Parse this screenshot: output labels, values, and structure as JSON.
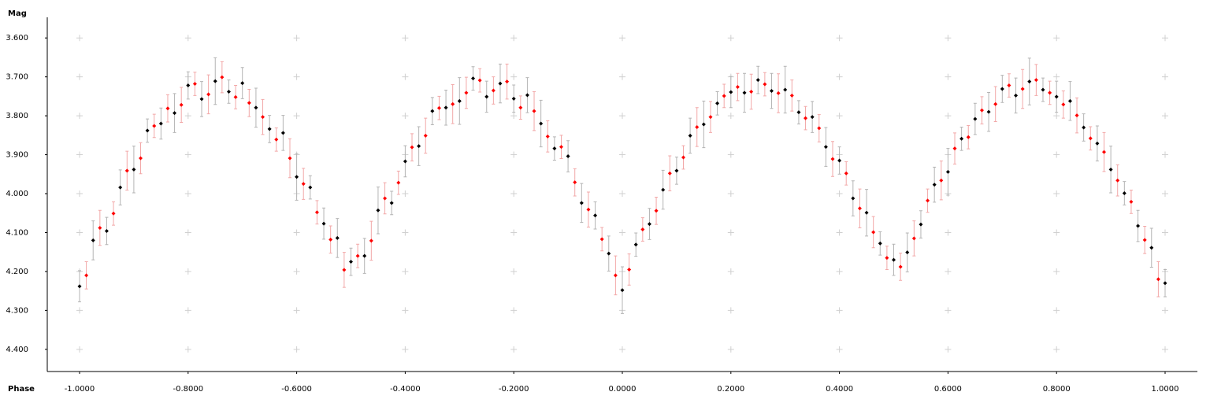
{
  "chart_data": {
    "type": "scatter",
    "x_label": "Phase",
    "y_label": "Mag",
    "xlim": [
      -1.0595,
      1.0595
    ],
    "ylim": [
      3.547,
      4.457
    ],
    "y_inverted": true,
    "grid": true,
    "xticks": [
      {
        "value": -1,
        "label": "-1.0000"
      },
      {
        "value": -0.8,
        "label": "-0.8000"
      },
      {
        "value": -0.6,
        "label": "-0.6000"
      },
      {
        "value": -0.4,
        "label": "-0.4000"
      },
      {
        "value": -0.2,
        "label": "-0.2000"
      },
      {
        "value": 0,
        "label": "0.0000"
      },
      {
        "value": 0.2,
        "label": "0.2000"
      },
      {
        "value": 0.4,
        "label": "0.4000"
      },
      {
        "value": 0.6,
        "label": "0.6000"
      },
      {
        "value": 0.8,
        "label": "0.8000"
      },
      {
        "value": 1,
        "label": "1.0000"
      }
    ],
    "yticks": [
      {
        "value": 3.6,
        "label": "3.600"
      },
      {
        "value": 3.7,
        "label": "3.700"
      },
      {
        "value": 3.8,
        "label": "3.800"
      },
      {
        "value": 3.9,
        "label": "3.900"
      },
      {
        "value": 4.0,
        "label": "4.000"
      },
      {
        "value": 4.1,
        "label": "4.100"
      },
      {
        "value": 4.2,
        "label": "4.200"
      },
      {
        "value": 4.3,
        "label": "4.300"
      },
      {
        "value": 4.4,
        "label": "4.400"
      }
    ],
    "series": [
      {
        "color": "#000000",
        "error_color": "#b4b4b4",
        "x": [
          -1,
          -0.975,
          -0.95,
          -0.925,
          -0.9,
          -0.875,
          -0.85,
          -0.825,
          -0.8,
          -0.775,
          -0.75,
          -0.725,
          -0.7,
          -0.675,
          -0.65,
          -0.625,
          -0.6,
          -0.575,
          -0.55,
          -0.525,
          -0.5,
          -0.475,
          -0.45,
          -0.425,
          -0.4,
          -0.375,
          -0.35,
          -0.325,
          -0.3,
          -0.275,
          -0.25,
          -0.225,
          -0.2,
          -0.175,
          -0.15,
          -0.125,
          -0.1,
          -0.075,
          -0.05,
          -0.025,
          0,
          0.025,
          0.05,
          0.075,
          0.1,
          0.125,
          0.15,
          0.175,
          0.2,
          0.225,
          0.25,
          0.275,
          0.3,
          0.325,
          0.35,
          0.375,
          0.4,
          0.425,
          0.45,
          0.475,
          0.5,
          0.525,
          0.55,
          0.575,
          0.6,
          0.625,
          0.65,
          0.675,
          0.7,
          0.725,
          0.75,
          0.775,
          0.8,
          0.825,
          0.85,
          0.875,
          0.9,
          0.925,
          0.95,
          0.975,
          1
        ],
        "values": [
          4.238,
          4.12,
          4.096,
          3.984,
          3.938,
          3.838,
          3.82,
          3.793,
          3.722,
          3.757,
          3.711,
          3.738,
          3.716,
          3.779,
          3.834,
          3.844,
          3.957,
          3.984,
          4.077,
          4.114,
          4.175,
          4.16,
          4.043,
          4.024,
          3.917,
          3.878,
          3.788,
          3.779,
          3.762,
          3.704,
          3.751,
          3.717,
          3.756,
          3.747,
          3.82,
          3.884,
          3.904,
          4.024,
          4.056,
          4.154,
          4.248,
          4.131,
          4.078,
          3.99,
          3.941,
          3.851,
          3.822,
          3.768,
          3.739,
          3.741,
          3.708,
          3.736,
          3.733,
          3.791,
          3.803,
          3.88,
          3.915,
          4.012,
          4.049,
          4.128,
          4.17,
          4.151,
          4.079,
          3.977,
          3.944,
          3.859,
          3.808,
          3.79,
          3.731,
          3.748,
          3.712,
          3.733,
          3.751,
          3.762,
          3.83,
          3.871,
          3.938,
          3.999,
          4.083,
          4.139,
          4.23
        ],
        "errors": [
          0.04,
          0.05,
          0.035,
          0.045,
          0.06,
          0.03,
          0.04,
          0.05,
          0.035,
          0.045,
          0.06,
          0.03,
          0.04,
          0.05,
          0.035,
          0.045,
          0.06,
          0.03,
          0.04,
          0.05,
          0.035,
          0.045,
          0.06,
          0.03,
          0.04,
          0.05,
          0.035,
          0.045,
          0.06,
          0.03,
          0.04,
          0.05,
          0.035,
          0.045,
          0.06,
          0.03,
          0.04,
          0.05,
          0.035,
          0.045,
          0.06,
          0.03,
          0.04,
          0.05,
          0.035,
          0.045,
          0.06,
          0.03,
          0.04,
          0.05,
          0.035,
          0.045,
          0.06,
          0.03,
          0.04,
          0.05,
          0.035,
          0.045,
          0.06,
          0.03,
          0.04,
          0.05,
          0.035,
          0.045,
          0.06,
          0.03,
          0.04,
          0.05,
          0.035,
          0.045,
          0.06,
          0.03,
          0.04,
          0.05,
          0.035,
          0.045,
          0.06,
          0.03,
          0.04,
          0.05,
          0.035
        ]
      },
      {
        "color": "#ff0000",
        "error_color": "#f2a8a8",
        "x": [
          -0.9875,
          -0.9625,
          -0.9375,
          -0.9125,
          -0.8875,
          -0.8625,
          -0.8375,
          -0.8125,
          -0.7875,
          -0.7625,
          -0.7375,
          -0.7125,
          -0.6875,
          -0.6625,
          -0.6375,
          -0.6125,
          -0.5875,
          -0.5625,
          -0.5375,
          -0.5125,
          -0.4875,
          -0.4625,
          -0.4375,
          -0.4125,
          -0.3875,
          -0.3625,
          -0.3375,
          -0.3125,
          -0.2875,
          -0.2625,
          -0.2375,
          -0.2125,
          -0.1875,
          -0.1625,
          -0.1375,
          -0.1125,
          -0.0875,
          -0.0625,
          -0.0375,
          -0.0125,
          0.0125,
          0.0375,
          0.0625,
          0.0875,
          0.1125,
          0.1375,
          0.1625,
          0.1875,
          0.2125,
          0.2375,
          0.2625,
          0.2875,
          0.3125,
          0.3375,
          0.3625,
          0.3875,
          0.4125,
          0.4375,
          0.4625,
          0.4875,
          0.5125,
          0.5375,
          0.5625,
          0.5875,
          0.6125,
          0.6375,
          0.6625,
          0.6875,
          0.7125,
          0.7375,
          0.7625,
          0.7875,
          0.8125,
          0.8375,
          0.8625,
          0.8875,
          0.9125,
          0.9375,
          0.9625,
          0.9875
        ],
        "values": [
          4.21,
          4.088,
          4.051,
          3.941,
          3.909,
          3.826,
          3.781,
          3.772,
          3.718,
          3.745,
          3.701,
          3.752,
          3.767,
          3.803,
          3.861,
          3.909,
          3.975,
          4.048,
          4.118,
          4.196,
          4.16,
          4.121,
          4.012,
          3.972,
          3.881,
          3.851,
          3.78,
          3.77,
          3.741,
          3.709,
          3.735,
          3.712,
          3.779,
          3.788,
          3.853,
          3.88,
          3.971,
          4.041,
          4.117,
          4.21,
          4.195,
          4.092,
          4.044,
          3.948,
          3.907,
          3.829,
          3.803,
          3.749,
          3.726,
          3.738,
          3.719,
          3.742,
          3.748,
          3.806,
          3.832,
          3.911,
          3.948,
          4.038,
          4.099,
          4.165,
          4.188,
          4.115,
          4.018,
          3.966,
          3.884,
          3.855,
          3.786,
          3.77,
          3.722,
          3.731,
          3.708,
          3.741,
          3.771,
          3.799,
          3.858,
          3.893,
          3.966,
          4.021,
          4.119,
          4.22
        ],
        "errors": [
          0.035,
          0.045,
          0.03,
          0.05,
          0.04,
          0.03,
          0.035,
          0.045,
          0.03,
          0.05,
          0.04,
          0.03,
          0.035,
          0.045,
          0.03,
          0.05,
          0.04,
          0.03,
          0.035,
          0.045,
          0.03,
          0.05,
          0.04,
          0.03,
          0.035,
          0.045,
          0.03,
          0.05,
          0.04,
          0.03,
          0.035,
          0.045,
          0.03,
          0.05,
          0.04,
          0.03,
          0.035,
          0.045,
          0.03,
          0.05,
          0.04,
          0.03,
          0.035,
          0.045,
          0.03,
          0.05,
          0.04,
          0.03,
          0.035,
          0.045,
          0.03,
          0.05,
          0.04,
          0.03,
          0.035,
          0.045,
          0.03,
          0.05,
          0.04,
          0.03,
          0.035,
          0.045,
          0.03,
          0.05,
          0.04,
          0.03,
          0.035,
          0.045,
          0.03,
          0.05,
          0.04,
          0.03,
          0.035,
          0.045,
          0.03,
          0.05,
          0.04,
          0.03,
          0.035,
          0.045
        ]
      }
    ]
  }
}
